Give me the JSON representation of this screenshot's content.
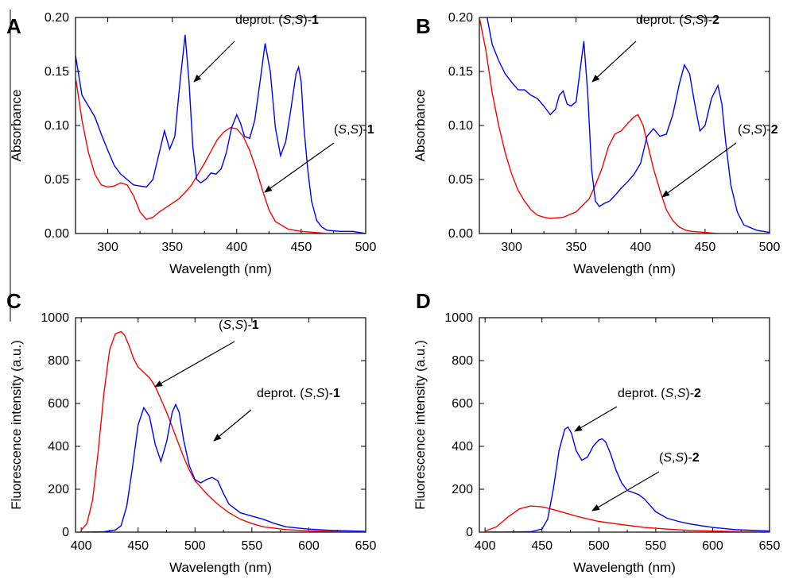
{
  "chart_data": [
    {
      "panel": "A",
      "type": "line",
      "xlabel": "Wavelength (nm)",
      "ylabel": "Absorbance",
      "xlim": [
        275,
        500
      ],
      "ylim": [
        0,
        0.2
      ],
      "xticks": [
        "300",
        "350",
        "400",
        "450",
        "500"
      ],
      "yticks": [
        "0.00",
        "0.05",
        "0.10",
        "0.15",
        "0.20"
      ],
      "series": [
        {
          "color": "#ff0000",
          "x": [
            275,
            280,
            285,
            290,
            295,
            300,
            305,
            310,
            315,
            320,
            325,
            330,
            335,
            340,
            345,
            350,
            355,
            360,
            365,
            370,
            375,
            380,
            385,
            390,
            395,
            400,
            405,
            410,
            415,
            420,
            425,
            430,
            440,
            450,
            460,
            470,
            480,
            490,
            500
          ],
          "y": [
            0.145,
            0.105,
            0.075,
            0.055,
            0.045,
            0.043,
            0.044,
            0.047,
            0.045,
            0.035,
            0.02,
            0.013,
            0.015,
            0.02,
            0.024,
            0.028,
            0.032,
            0.038,
            0.045,
            0.055,
            0.065,
            0.076,
            0.087,
            0.094,
            0.098,
            0.097,
            0.09,
            0.077,
            0.06,
            0.04,
            0.022,
            0.011,
            0.004,
            0.002,
            0.001,
            0.0,
            0.0,
            0.0,
            0.0
          ]
        },
        {
          "color": "#0000ff",
          "x": [
            275,
            280,
            285,
            290,
            295,
            300,
            305,
            310,
            315,
            320,
            325,
            330,
            335,
            340,
            344,
            348,
            352,
            356,
            360,
            363,
            366,
            369,
            372,
            376,
            380,
            384,
            388,
            392,
            396,
            400,
            403,
            406,
            410,
            414,
            418,
            422,
            426,
            430,
            434,
            438,
            442,
            446,
            448,
            450,
            452,
            455,
            458,
            462,
            466,
            470,
            480,
            490,
            500
          ],
          "y": [
            0.165,
            0.128,
            0.118,
            0.108,
            0.092,
            0.077,
            0.063,
            0.055,
            0.05,
            0.045,
            0.044,
            0.043,
            0.05,
            0.075,
            0.095,
            0.078,
            0.09,
            0.14,
            0.184,
            0.14,
            0.08,
            0.05,
            0.047,
            0.05,
            0.056,
            0.055,
            0.06,
            0.075,
            0.098,
            0.11,
            0.102,
            0.09,
            0.088,
            0.105,
            0.14,
            0.176,
            0.15,
            0.098,
            0.072,
            0.085,
            0.115,
            0.148,
            0.154,
            0.14,
            0.1,
            0.06,
            0.03,
            0.012,
            0.006,
            0.003,
            0.002,
            0.002,
            0.0
          ]
        }
      ],
      "annotations": [
        {
          "pre": "deprot. (",
          "it1": "S",
          "mid": ",",
          "it2": "S",
          "post": ")-",
          "bold": "1"
        },
        {
          "pre": "(",
          "it1": "S",
          "mid": ",",
          "it2": "S",
          "post": ")-",
          "bold": "1"
        }
      ]
    },
    {
      "panel": "B",
      "type": "line",
      "xlabel": "Wavelength (nm)",
      "ylabel": "Absorbance",
      "xlim": [
        275,
        500
      ],
      "ylim": [
        0,
        0.2
      ],
      "xticks": [
        "300",
        "350",
        "400",
        "450",
        "500"
      ],
      "yticks": [
        "0.00",
        "0.05",
        "0.10",
        "0.15",
        "0.20"
      ],
      "series": [
        {
          "color": "#ff0000",
          "x": [
            275,
            280,
            285,
            290,
            295,
            300,
            305,
            310,
            315,
            320,
            325,
            330,
            340,
            350,
            360,
            365,
            370,
            375,
            380,
            385,
            390,
            395,
            398,
            402,
            406,
            410,
            415,
            420,
            425,
            430,
            435,
            440,
            450,
            460,
            470,
            480,
            490,
            500
          ],
          "y": [
            0.2,
            0.17,
            0.13,
            0.1,
            0.075,
            0.055,
            0.04,
            0.03,
            0.022,
            0.017,
            0.015,
            0.014,
            0.015,
            0.02,
            0.032,
            0.045,
            0.06,
            0.08,
            0.092,
            0.095,
            0.102,
            0.108,
            0.11,
            0.1,
            0.08,
            0.06,
            0.04,
            0.022,
            0.012,
            0.006,
            0.003,
            0.002,
            0.001,
            0.0,
            0.0,
            0.0,
            0.0,
            0.0
          ]
        },
        {
          "color": "#0000ff",
          "x": [
            281,
            285,
            290,
            295,
            300,
            305,
            310,
            315,
            320,
            325,
            330,
            334,
            337,
            340,
            343,
            346,
            350,
            353,
            356,
            359,
            362,
            365,
            368,
            372,
            376,
            380,
            385,
            390,
            395,
            400,
            405,
            410,
            415,
            420,
            425,
            430,
            434,
            438,
            442,
            446,
            450,
            455,
            460,
            463,
            466,
            470,
            475,
            480,
            490,
            500
          ],
          "y": [
            0.2,
            0.175,
            0.16,
            0.148,
            0.14,
            0.133,
            0.133,
            0.128,
            0.125,
            0.118,
            0.11,
            0.115,
            0.128,
            0.132,
            0.12,
            0.118,
            0.122,
            0.15,
            0.178,
            0.13,
            0.06,
            0.03,
            0.025,
            0.028,
            0.03,
            0.035,
            0.042,
            0.048,
            0.055,
            0.065,
            0.09,
            0.097,
            0.09,
            0.092,
            0.11,
            0.138,
            0.156,
            0.148,
            0.12,
            0.095,
            0.1,
            0.125,
            0.137,
            0.12,
            0.085,
            0.045,
            0.02,
            0.008,
            0.003,
            0.001
          ]
        }
      ],
      "annotations": [
        {
          "pre": "deprot. (",
          "it1": "S",
          "mid": ",",
          "it2": "S",
          "post": ")-",
          "bold": "2"
        },
        {
          "pre": "(",
          "it1": "S",
          "mid": ",",
          "it2": "S",
          "post": ")-",
          "bold": "2"
        }
      ]
    },
    {
      "panel": "C",
      "type": "line",
      "xlabel": "Wavelength (nm)",
      "ylabel": "Fluorescence intensity (a.u.)",
      "xlim": [
        395,
        650
      ],
      "ylim": [
        0,
        1000
      ],
      "xticks": [
        "400",
        "450",
        "500",
        "550",
        "600",
        "650"
      ],
      "yticks": [
        "0",
        "200",
        "400",
        "600",
        "800",
        "1000"
      ],
      "series": [
        {
          "color": "#ff0000",
          "x": [
            400,
            405,
            410,
            415,
            420,
            425,
            430,
            435,
            438,
            442,
            446,
            450,
            455,
            460,
            465,
            470,
            475,
            480,
            485,
            490,
            495,
            500,
            510,
            520,
            530,
            540,
            550,
            560,
            580,
            600,
            620,
            650
          ],
          "y": [
            10,
            40,
            150,
            380,
            650,
            850,
            925,
            935,
            920,
            870,
            810,
            770,
            745,
            720,
            680,
            620,
            560,
            490,
            420,
            350,
            290,
            240,
            180,
            130,
            90,
            60,
            40,
            25,
            12,
            6,
            3,
            1
          ]
        },
        {
          "color": "#0000ff",
          "x": [
            400,
            420,
            430,
            435,
            440,
            445,
            450,
            455,
            460,
            465,
            470,
            475,
            480,
            483,
            486,
            490,
            495,
            500,
            505,
            510,
            515,
            520,
            525,
            530,
            540,
            550,
            560,
            570,
            580,
            600,
            620,
            650
          ],
          "y": [
            0,
            2,
            10,
            30,
            120,
            300,
            500,
            580,
            540,
            410,
            330,
            420,
            560,
            595,
            560,
            430,
            310,
            245,
            230,
            245,
            255,
            240,
            180,
            130,
            90,
            75,
            60,
            40,
            25,
            14,
            8,
            4
          ]
        }
      ],
      "annotations": [
        {
          "pre": "(",
          "it1": "S",
          "mid": ",",
          "it2": "S",
          "post": ")-",
          "bold": "1"
        },
        {
          "pre": "deprot. (",
          "it1": "S",
          "mid": ",",
          "it2": "S",
          "post": ")-",
          "bold": "1"
        }
      ]
    },
    {
      "panel": "D",
      "type": "line",
      "xlabel": "Wavelength (nm)",
      "ylabel": "Fluorescence intensity (a.u.)",
      "xlim": [
        395,
        650
      ],
      "ylim": [
        0,
        1000
      ],
      "xticks": [
        "400",
        "450",
        "500",
        "550",
        "600",
        "650"
      ],
      "yticks": [
        "0",
        "200",
        "400",
        "600",
        "800",
        "1000"
      ],
      "series": [
        {
          "color": "#ff0000",
          "x": [
            400,
            410,
            420,
            430,
            440,
            450,
            460,
            470,
            480,
            490,
            500,
            520,
            540,
            560,
            580,
            600,
            620,
            650
          ],
          "y": [
            5,
            25,
            70,
            108,
            122,
            118,
            105,
            90,
            75,
            62,
            50,
            35,
            22,
            14,
            8,
            5,
            3,
            1
          ]
        },
        {
          "color": "#0000ff",
          "x": [
            400,
            440,
            450,
            455,
            460,
            465,
            470,
            473,
            476,
            480,
            485,
            490,
            495,
            500,
            503,
            506,
            510,
            515,
            520,
            525,
            530,
            535,
            540,
            545,
            550,
            560,
            570,
            580,
            600,
            620,
            650
          ],
          "y": [
            0,
            2,
            15,
            60,
            200,
            380,
            480,
            490,
            460,
            380,
            335,
            350,
            400,
            430,
            435,
            420,
            370,
            290,
            230,
            195,
            185,
            175,
            155,
            125,
            95,
            65,
            50,
            38,
            22,
            12,
            5
          ]
        }
      ],
      "annotations": [
        {
          "pre": "deprot. (",
          "it1": "S",
          "mid": ",",
          "it2": "S",
          "post": ")-",
          "bold": "2"
        },
        {
          "pre": "(",
          "it1": "S",
          "mid": ",",
          "it2": "S",
          "post": ")-",
          "bold": "2"
        }
      ]
    }
  ]
}
